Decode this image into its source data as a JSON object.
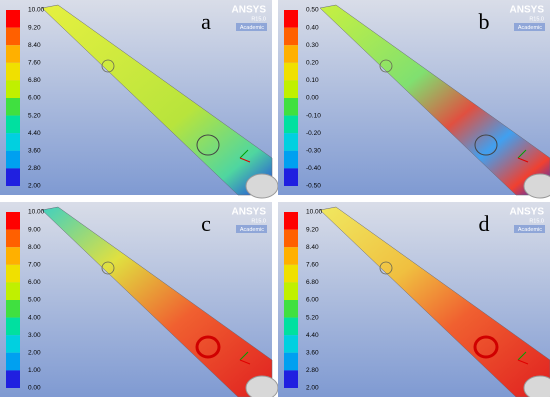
{
  "logo": {
    "brand": "ANSYS",
    "version": "R15.0",
    "edition": "Academic"
  },
  "panels": [
    {
      "label": "a",
      "ticks": [
        "10.00",
        "9.20",
        "8.40",
        "7.60",
        "6.80",
        "6.00",
        "5.20",
        "4.40",
        "3.60",
        "2.80",
        "2.00"
      ]
    },
    {
      "label": "b",
      "ticks": [
        "0.50",
        "0.40",
        "0.30",
        "0.20",
        "0.10",
        "0.00",
        "-0.10",
        "-0.20",
        "-0.30",
        "-0.40",
        "-0.50"
      ]
    },
    {
      "label": "c",
      "ticks": [
        "10.00",
        "9.00",
        "8.00",
        "7.00",
        "6.00",
        "5.00",
        "4.00",
        "3.00",
        "2.00",
        "1.00",
        "0.00"
      ]
    },
    {
      "label": "d",
      "ticks": [
        "10.00",
        "9.20",
        "8.40",
        "7.60",
        "6.80",
        "6.00",
        "5.20",
        "4.40",
        "3.60",
        "2.80",
        "2.00"
      ]
    }
  ]
}
